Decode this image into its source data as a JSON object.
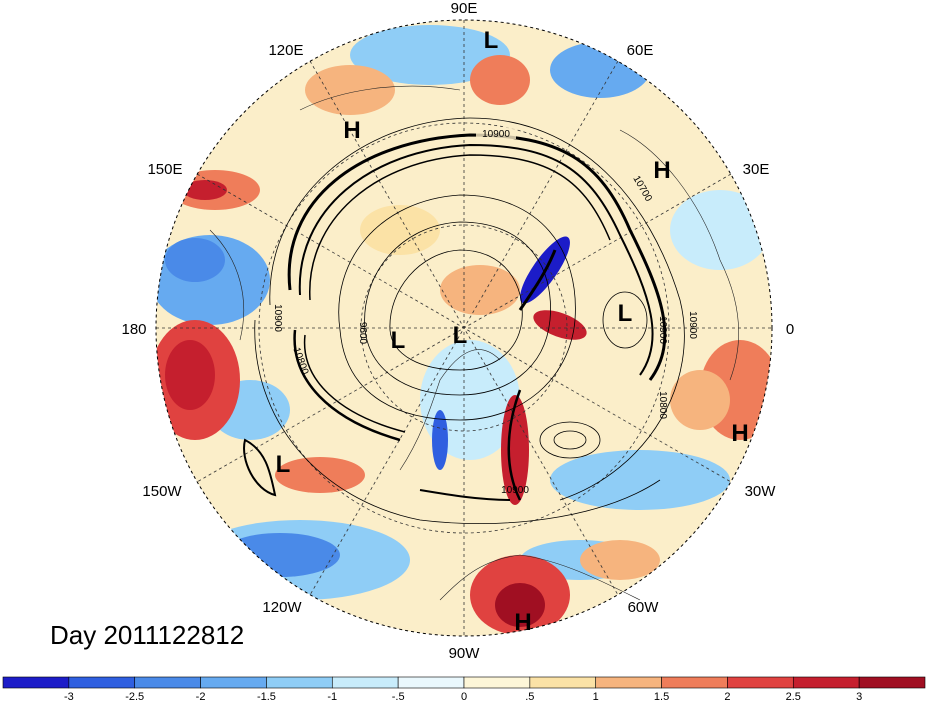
{
  "date_label": "Day 2011122812",
  "longitude_labels": [
    "90E",
    "60E",
    "30E",
    "0",
    "30W",
    "60W",
    "90W",
    "120W",
    "150W",
    "180",
    "150E",
    "120E"
  ],
  "pressure_systems": [
    "L",
    "H",
    "H",
    "L",
    "L",
    "L",
    "H",
    "L",
    "H",
    "H"
  ],
  "contour_labels": [
    "10900",
    "10700",
    "10900",
    "10900",
    "10900",
    "9600",
    "10800",
    "10800",
    "10900"
  ],
  "colorbar": {
    "ticks": [
      "-3",
      "-2.5",
      "-2",
      "-1.5",
      "-1",
      "-.5",
      "0",
      ".5",
      "1",
      "1.5",
      "2",
      "2.5",
      "3"
    ],
    "colors": [
      "#1c1cc8",
      "#2f5fe0",
      "#4a8ae8",
      "#66aaf0",
      "#8fcdf6",
      "#c8ecfb",
      "#eaf8fd",
      "#fdf6d8",
      "#fbe2a6",
      "#f6b47e",
      "#ef7d5a",
      "#e04240",
      "#c51f2e",
      "#a00f22"
    ]
  }
}
